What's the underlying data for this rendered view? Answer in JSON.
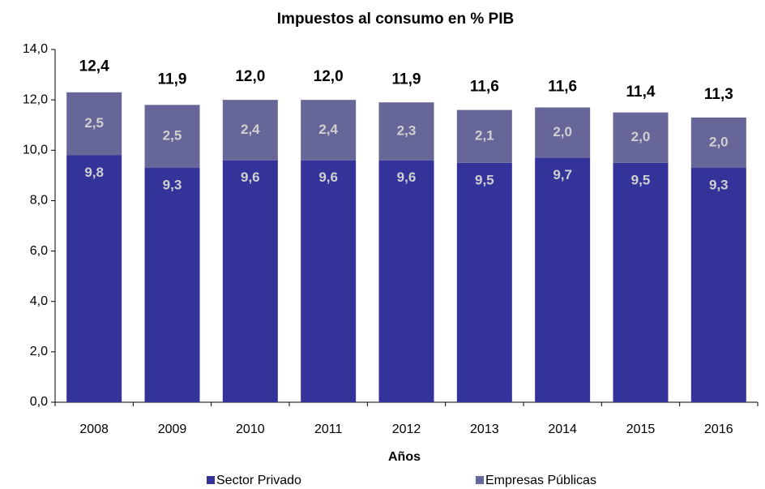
{
  "chart_data": {
    "type": "bar",
    "stacked": true,
    "title": "Impuestos al consumo en % PIB",
    "x_label": "Años",
    "categories": [
      "2008",
      "2009",
      "2010",
      "2011",
      "2012",
      "2013",
      "2014",
      "2015",
      "2016"
    ],
    "series": [
      {
        "name": "Sector Privado",
        "color": "#333399",
        "values": [
          9.8,
          9.3,
          9.6,
          9.6,
          9.6,
          9.5,
          9.7,
          9.5,
          9.3
        ],
        "value_labels": [
          "9,8",
          "9,3",
          "9,6",
          "9,6",
          "9,6",
          "9,5",
          "9,7",
          "9,5",
          "9,3"
        ]
      },
      {
        "name": "Empresas Públicas",
        "color": "#666699",
        "values": [
          2.5,
          2.5,
          2.4,
          2.4,
          2.3,
          2.1,
          2.0,
          2.0,
          2.0
        ],
        "value_labels": [
          "2,5",
          "2,5",
          "2,4",
          "2,4",
          "2,3",
          "2,1",
          "2,0",
          "2,0",
          "2,0"
        ]
      }
    ],
    "totals": {
      "values": [
        12.4,
        11.9,
        12.0,
        12.0,
        11.9,
        11.6,
        11.6,
        11.4,
        11.3
      ],
      "value_labels": [
        "12,4",
        "11,9",
        "12,0",
        "12,0",
        "11,9",
        "11,6",
        "11,6",
        "11,4",
        "11,3"
      ]
    },
    "ylim": [
      0,
      14
    ],
    "yticks": [
      {
        "value": 0,
        "label": "0,0"
      },
      {
        "value": 2,
        "label": "2,0"
      },
      {
        "value": 4,
        "label": "4,0"
      },
      {
        "value": 6,
        "label": "6,0"
      },
      {
        "value": 8,
        "label": "8,0"
      },
      {
        "value": 10,
        "label": "10,0"
      },
      {
        "value": 12,
        "label": "12,0"
      },
      {
        "value": 14,
        "label": "14,0"
      }
    ],
    "legend": "bottom"
  }
}
